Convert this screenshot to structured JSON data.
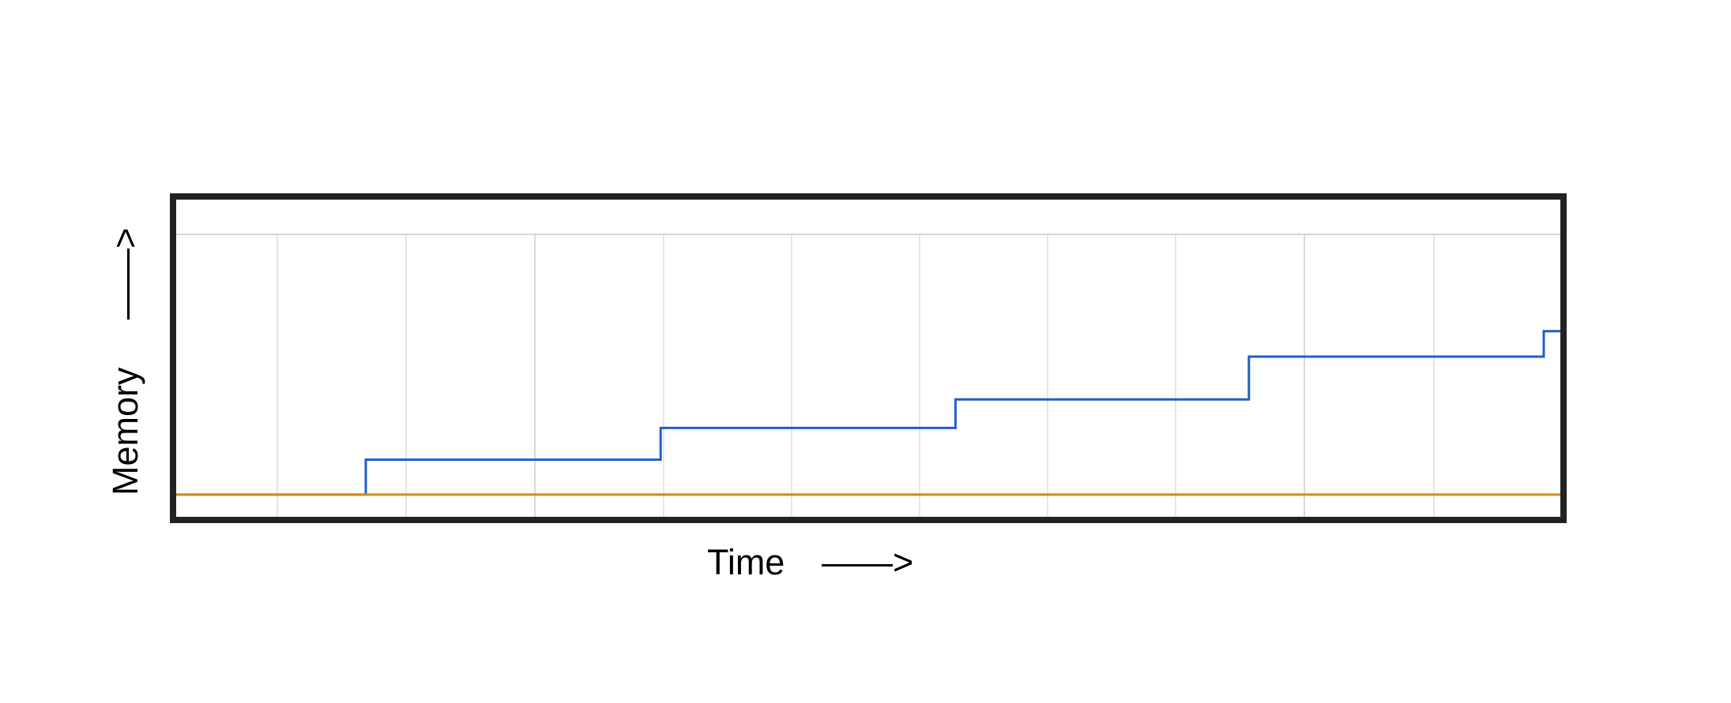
{
  "chart_data": {
    "type": "line",
    "step": true,
    "xlabel": "Time",
    "ylabel": "Memory",
    "x_arrow": "——>",
    "y_arrow": "——>",
    "xlim": [
      0,
      1
    ],
    "ylim": [
      0,
      1
    ],
    "grid": true,
    "legend": "none",
    "x_tick_labels": [],
    "y_tick_labels": [],
    "series": [
      {
        "color": "#1f5fcc",
        "x": [
          0,
          0.137,
          0.137,
          0.35,
          0.35,
          0.563,
          0.563,
          0.775,
          0.775,
          0.988,
          0.988,
          1.0
        ],
        "y": [
          0.07,
          0.07,
          0.18,
          0.18,
          0.28,
          0.28,
          0.37,
          0.37,
          0.505,
          0.505,
          0.585,
          0.585
        ]
      },
      {
        "color": "#d48a1c",
        "x": [
          0,
          1.0
        ],
        "y": [
          0.07,
          0.07
        ]
      }
    ]
  }
}
